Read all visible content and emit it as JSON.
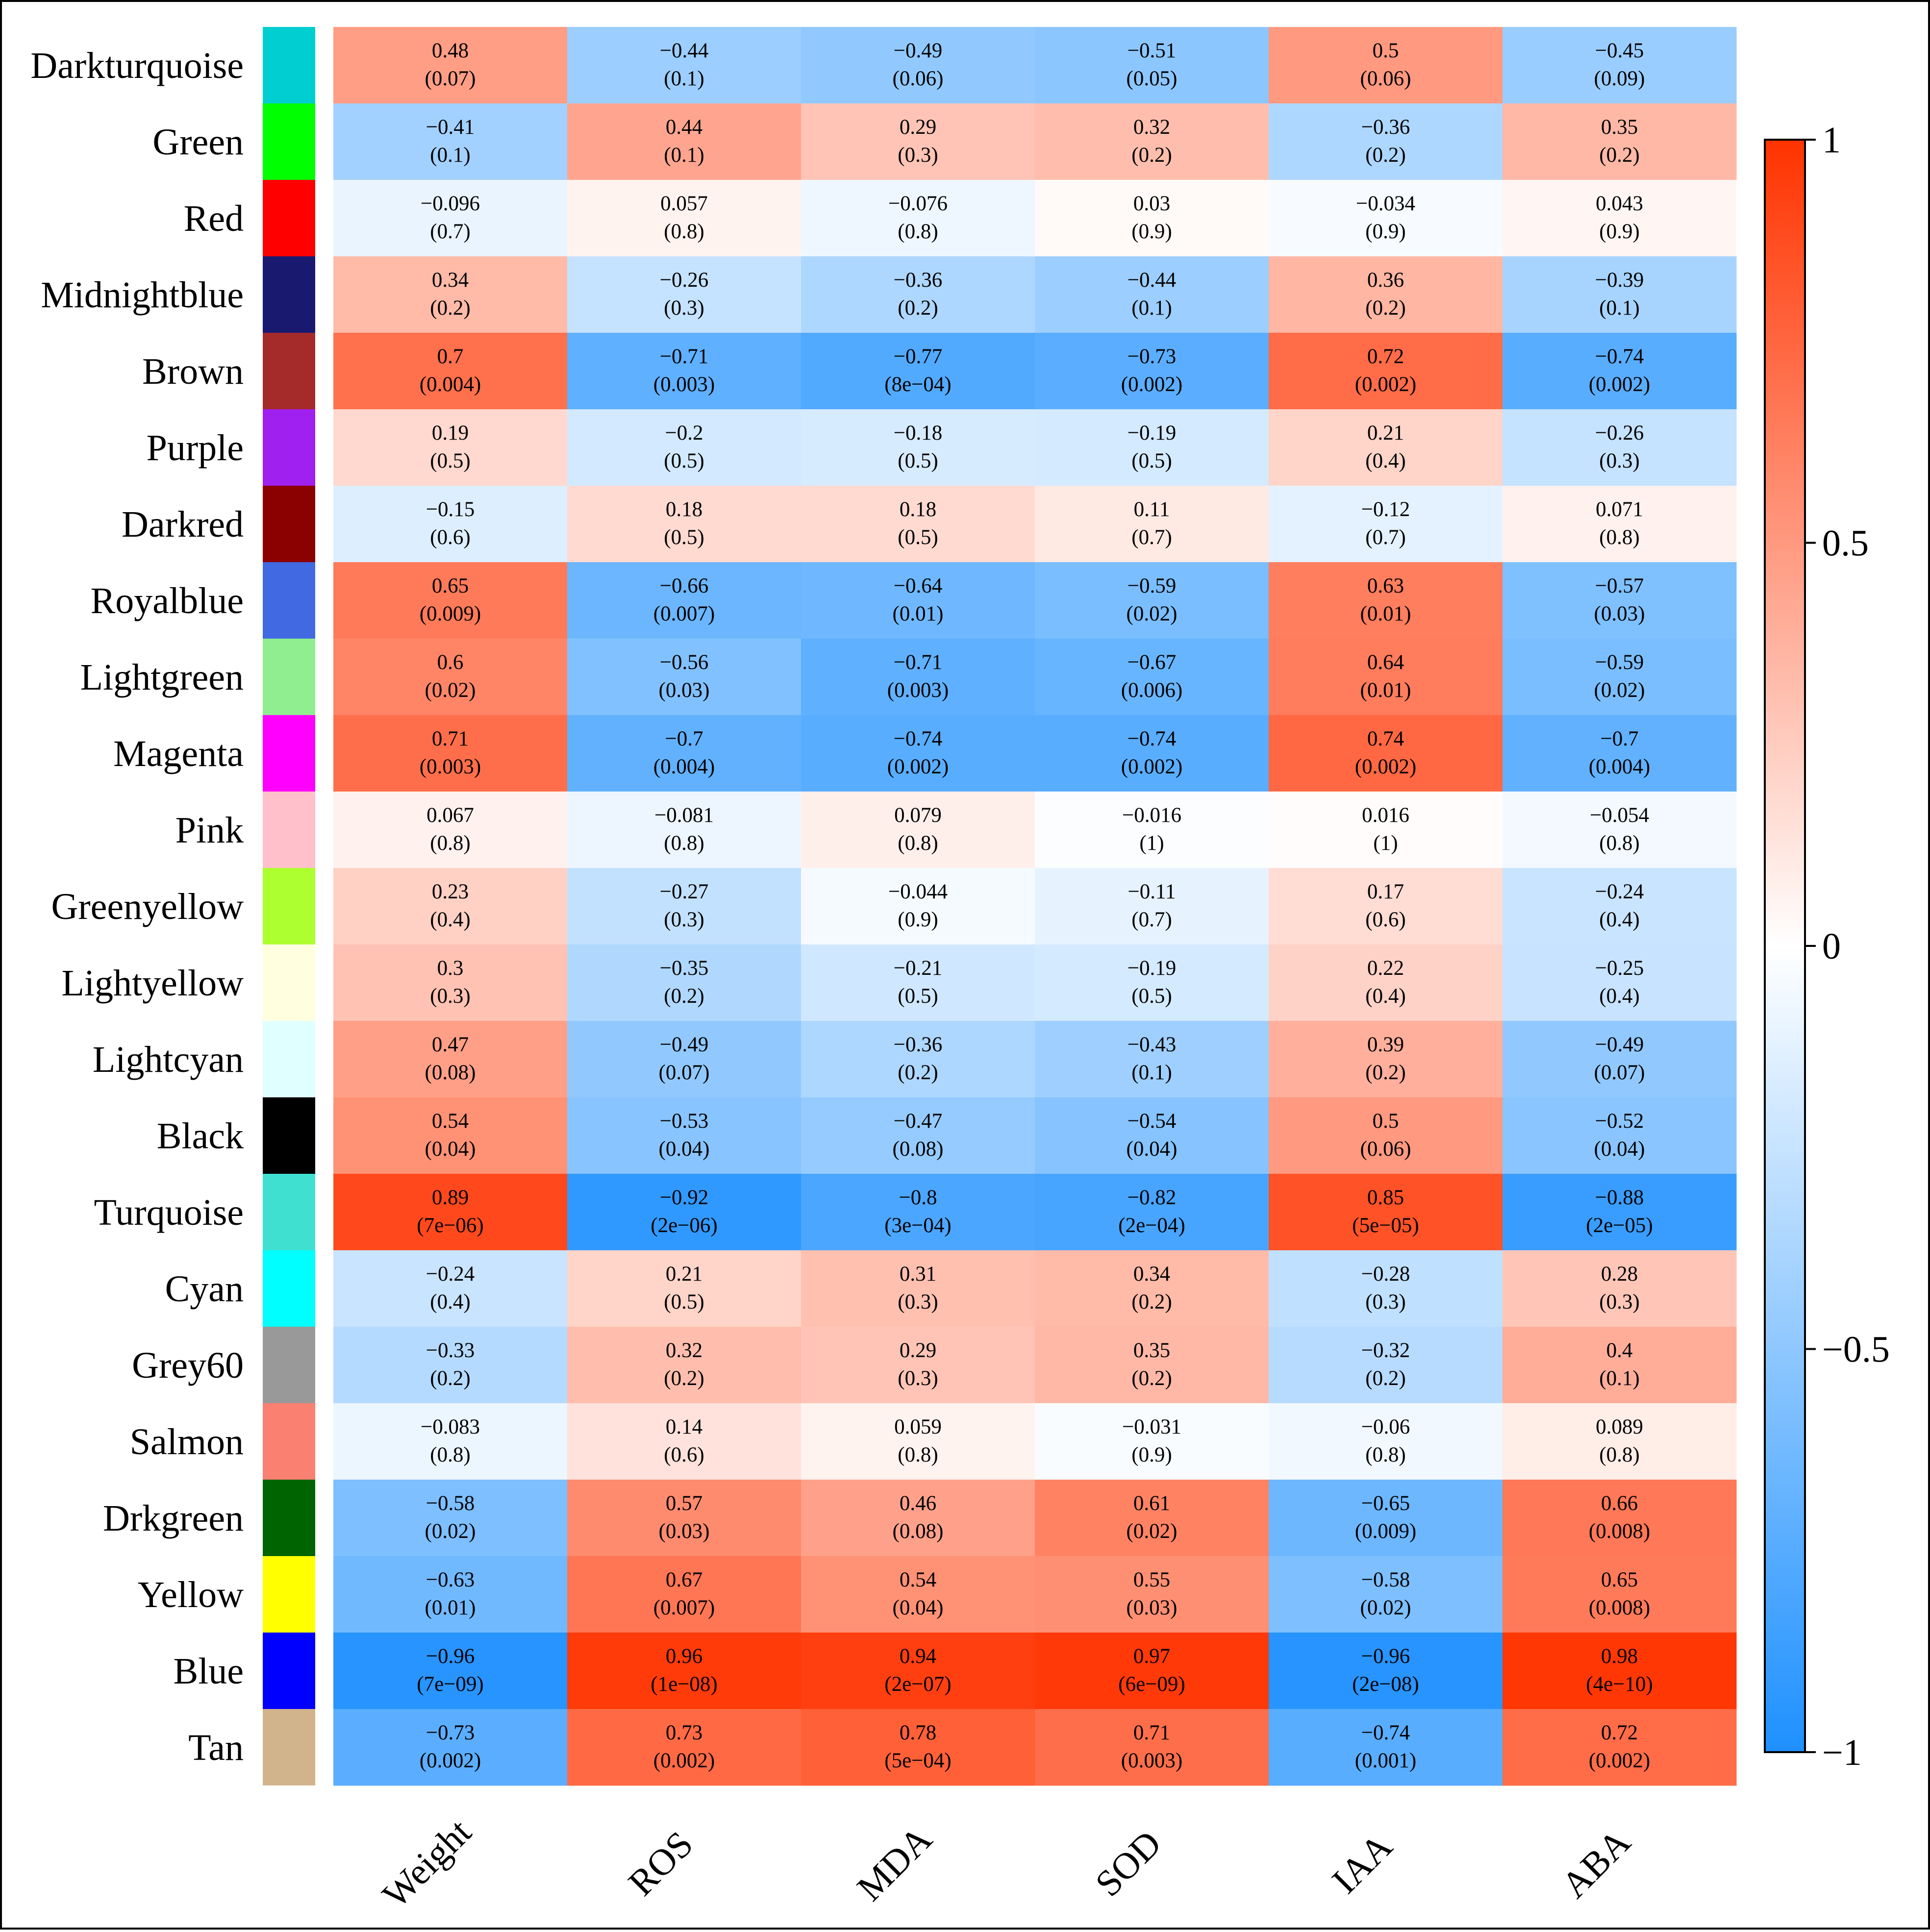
{
  "chart_data": {
    "type": "heatmap",
    "title": "",
    "rows": [
      "Darkturquoise",
      "Green",
      "Red",
      "Midnightblue",
      "Brown",
      "Purple",
      "Darkred",
      "Royalblue",
      "Lightgreen",
      "Magenta",
      "Pink",
      "Greenyellow",
      "Lightyellow",
      "Lightcyan",
      "Black",
      "Turquoise",
      "Cyan",
      "Grey60",
      "Salmon",
      "Drkgreen",
      "Yellow",
      "Blue",
      "Tan"
    ],
    "module_colors": [
      "#00CED1",
      "#00FF00",
      "#FF0000",
      "#191970",
      "#A52A2A",
      "#A020F0",
      "#8B0000",
      "#4169E1",
      "#90EE90",
      "#FF00FF",
      "#FFC0CB",
      "#ADFF2F",
      "#FFFFE0",
      "#E0FFFF",
      "#000000",
      "#40E0D0",
      "#00FFFF",
      "#999999",
      "#FA8072",
      "#006400",
      "#FFFF00",
      "#0000FF",
      "#D2B48C"
    ],
    "columns": [
      "Weight",
      "ROS",
      "MDA",
      "SOD",
      "IAA",
      "ABA"
    ],
    "values": [
      [
        0.48,
        -0.44,
        -0.49,
        -0.51,
        0.5,
        -0.45
      ],
      [
        -0.41,
        0.44,
        0.29,
        0.32,
        -0.36,
        0.35
      ],
      [
        -0.096,
        0.057,
        -0.076,
        0.03,
        -0.034,
        0.043
      ],
      [
        0.34,
        -0.26,
        -0.36,
        -0.44,
        0.36,
        -0.39
      ],
      [
        0.7,
        -0.71,
        -0.77,
        -0.73,
        0.72,
        -0.74
      ],
      [
        0.19,
        -0.2,
        -0.18,
        -0.19,
        0.21,
        -0.26
      ],
      [
        -0.15,
        0.18,
        0.18,
        0.11,
        -0.12,
        0.071
      ],
      [
        0.65,
        -0.66,
        -0.64,
        -0.59,
        0.63,
        -0.57
      ],
      [
        0.6,
        -0.56,
        -0.71,
        -0.67,
        0.64,
        -0.59
      ],
      [
        0.71,
        -0.7,
        -0.74,
        -0.74,
        0.74,
        -0.7
      ],
      [
        0.067,
        -0.081,
        0.079,
        -0.016,
        0.016,
        -0.054
      ],
      [
        0.23,
        -0.27,
        -0.044,
        -0.11,
        0.17,
        -0.24
      ],
      [
        0.3,
        -0.35,
        -0.21,
        -0.19,
        0.22,
        -0.25
      ],
      [
        0.47,
        -0.49,
        -0.36,
        -0.43,
        0.39,
        -0.49
      ],
      [
        0.54,
        -0.53,
        -0.47,
        -0.54,
        0.5,
        -0.52
      ],
      [
        0.89,
        -0.92,
        -0.8,
        -0.82,
        0.85,
        -0.88
      ],
      [
        -0.24,
        0.21,
        0.31,
        0.34,
        -0.28,
        0.28
      ],
      [
        -0.33,
        0.32,
        0.29,
        0.35,
        -0.32,
        0.4
      ],
      [
        -0.083,
        0.14,
        0.059,
        -0.031,
        -0.06,
        0.089
      ],
      [
        -0.58,
        0.57,
        0.46,
        0.61,
        -0.65,
        0.66
      ],
      [
        -0.63,
        0.67,
        0.54,
        0.55,
        -0.58,
        0.65
      ],
      [
        -0.96,
        0.96,
        0.94,
        0.97,
        -0.96,
        0.98
      ],
      [
        -0.73,
        0.73,
        0.78,
        0.71,
        -0.74,
        0.72
      ]
    ],
    "value_labels": [
      [
        "0.48",
        "−0.44",
        "−0.49",
        "−0.51",
        "0.5",
        "−0.45"
      ],
      [
        "−0.41",
        "0.44",
        "0.29",
        "0.32",
        "−0.36",
        "0.35"
      ],
      [
        "−0.096",
        "0.057",
        "−0.076",
        "0.03",
        "−0.034",
        "0.043"
      ],
      [
        "0.34",
        "−0.26",
        "−0.36",
        "−0.44",
        "0.36",
        "−0.39"
      ],
      [
        "0.7",
        "−0.71",
        "−0.77",
        "−0.73",
        "0.72",
        "−0.74"
      ],
      [
        "0.19",
        "−0.2",
        "−0.18",
        "−0.19",
        "0.21",
        "−0.26"
      ],
      [
        "−0.15",
        "0.18",
        "0.18",
        "0.11",
        "−0.12",
        "0.071"
      ],
      [
        "0.65",
        "−0.66",
        "−0.64",
        "−0.59",
        "0.63",
        "−0.57"
      ],
      [
        "0.6",
        "−0.56",
        "−0.71",
        "−0.67",
        "0.64",
        "−0.59"
      ],
      [
        "0.71",
        "−0.7",
        "−0.74",
        "−0.74",
        "0.74",
        "−0.7"
      ],
      [
        "0.067",
        "−0.081",
        "0.079",
        "−0.016",
        "0.016",
        "−0.054"
      ],
      [
        "0.23",
        "−0.27",
        "−0.044",
        "−0.11",
        "0.17",
        "−0.24"
      ],
      [
        "0.3",
        "−0.35",
        "−0.21",
        "−0.19",
        "0.22",
        "−0.25"
      ],
      [
        "0.47",
        "−0.49",
        "−0.36",
        "−0.43",
        "0.39",
        "−0.49"
      ],
      [
        "0.54",
        "−0.53",
        "−0.47",
        "−0.54",
        "0.5",
        "−0.52"
      ],
      [
        "0.89",
        "−0.92",
        "−0.8",
        "−0.82",
        "0.85",
        "−0.88"
      ],
      [
        "−0.24",
        "0.21",
        "0.31",
        "0.34",
        "−0.28",
        "0.28"
      ],
      [
        "−0.33",
        "0.32",
        "0.29",
        "0.35",
        "−0.32",
        "0.4"
      ],
      [
        "−0.083",
        "0.14",
        "0.059",
        "−0.031",
        "−0.06",
        "0.089"
      ],
      [
        "−0.58",
        "0.57",
        "0.46",
        "0.61",
        "−0.65",
        "0.66"
      ],
      [
        "−0.63",
        "0.67",
        "0.54",
        "0.55",
        "−0.58",
        "0.65"
      ],
      [
        "−0.96",
        "0.96",
        "0.94",
        "0.97",
        "−0.96",
        "0.98"
      ],
      [
        "−0.73",
        "0.73",
        "0.78",
        "0.71",
        "−0.74",
        "0.72"
      ]
    ],
    "pvalues": [
      [
        "(0.07)",
        "(0.1)",
        "(0.06)",
        "(0.05)",
        "(0.06)",
        "(0.09)"
      ],
      [
        "(0.1)",
        "(0.1)",
        "(0.3)",
        "(0.2)",
        "(0.2)",
        "(0.2)"
      ],
      [
        "(0.7)",
        "(0.8)",
        "(0.8)",
        "(0.9)",
        "(0.9)",
        "(0.9)"
      ],
      [
        "(0.2)",
        "(0.3)",
        "(0.2)",
        "(0.1)",
        "(0.2)",
        "(0.1)"
      ],
      [
        "(0.004)",
        "(0.003)",
        "(8e−04)",
        "(0.002)",
        "(0.002)",
        "(0.002)"
      ],
      [
        "(0.5)",
        "(0.5)",
        "(0.5)",
        "(0.5)",
        "(0.4)",
        "(0.3)"
      ],
      [
        "(0.6)",
        "(0.5)",
        "(0.5)",
        "(0.7)",
        "(0.7)",
        "(0.8)"
      ],
      [
        "(0.009)",
        "(0.007)",
        "(0.01)",
        "(0.02)",
        "(0.01)",
        "(0.03)"
      ],
      [
        "(0.02)",
        "(0.03)",
        "(0.003)",
        "(0.006)",
        "(0.01)",
        "(0.02)"
      ],
      [
        "(0.003)",
        "(0.004)",
        "(0.002)",
        "(0.002)",
        "(0.002)",
        "(0.004)"
      ],
      [
        "(0.8)",
        "(0.8)",
        "(0.8)",
        "(1)",
        "(1)",
        "(0.8)"
      ],
      [
        "(0.4)",
        "(0.3)",
        "(0.9)",
        "(0.7)",
        "(0.6)",
        "(0.4)"
      ],
      [
        "(0.3)",
        "(0.2)",
        "(0.5)",
        "(0.5)",
        "(0.4)",
        "(0.4)"
      ],
      [
        "(0.08)",
        "(0.07)",
        "(0.2)",
        "(0.1)",
        "(0.2)",
        "(0.07)"
      ],
      [
        "(0.04)",
        "(0.04)",
        "(0.08)",
        "(0.04)",
        "(0.06)",
        "(0.04)"
      ],
      [
        "(7e−06)",
        "(2e−06)",
        "(3e−04)",
        "(2e−04)",
        "(5e−05)",
        "(2e−05)"
      ],
      [
        "(0.4)",
        "(0.5)",
        "(0.3)",
        "(0.2)",
        "(0.3)",
        "(0.3)"
      ],
      [
        "(0.2)",
        "(0.2)",
        "(0.3)",
        "(0.2)",
        "(0.2)",
        "(0.1)"
      ],
      [
        "(0.8)",
        "(0.6)",
        "(0.8)",
        "(0.9)",
        "(0.8)",
        "(0.8)"
      ],
      [
        "(0.02)",
        "(0.03)",
        "(0.08)",
        "(0.02)",
        "(0.009)",
        "(0.008)"
      ],
      [
        "(0.01)",
        "(0.007)",
        "(0.04)",
        "(0.03)",
        "(0.02)",
        "(0.008)"
      ],
      [
        "(7e−09)",
        "(1e−08)",
        "(2e−07)",
        "(6e−09)",
        "(2e−08)",
        "(4e−10)"
      ],
      [
        "(0.002)",
        "(0.002)",
        "(5e−04)",
        "(0.003)",
        "(0.001)",
        "(0.002)"
      ]
    ],
    "colorbar": {
      "range": [
        -1,
        1
      ],
      "ticks": [
        1,
        0.5,
        0,
        -0.5,
        -1
      ],
      "tick_labels": [
        "1",
        "0.5",
        "0",
        "−0.5",
        "−1"
      ],
      "colors": {
        "low": "#1E90FF",
        "mid": "#FFFFFF",
        "high": "#FF3300"
      }
    }
  }
}
